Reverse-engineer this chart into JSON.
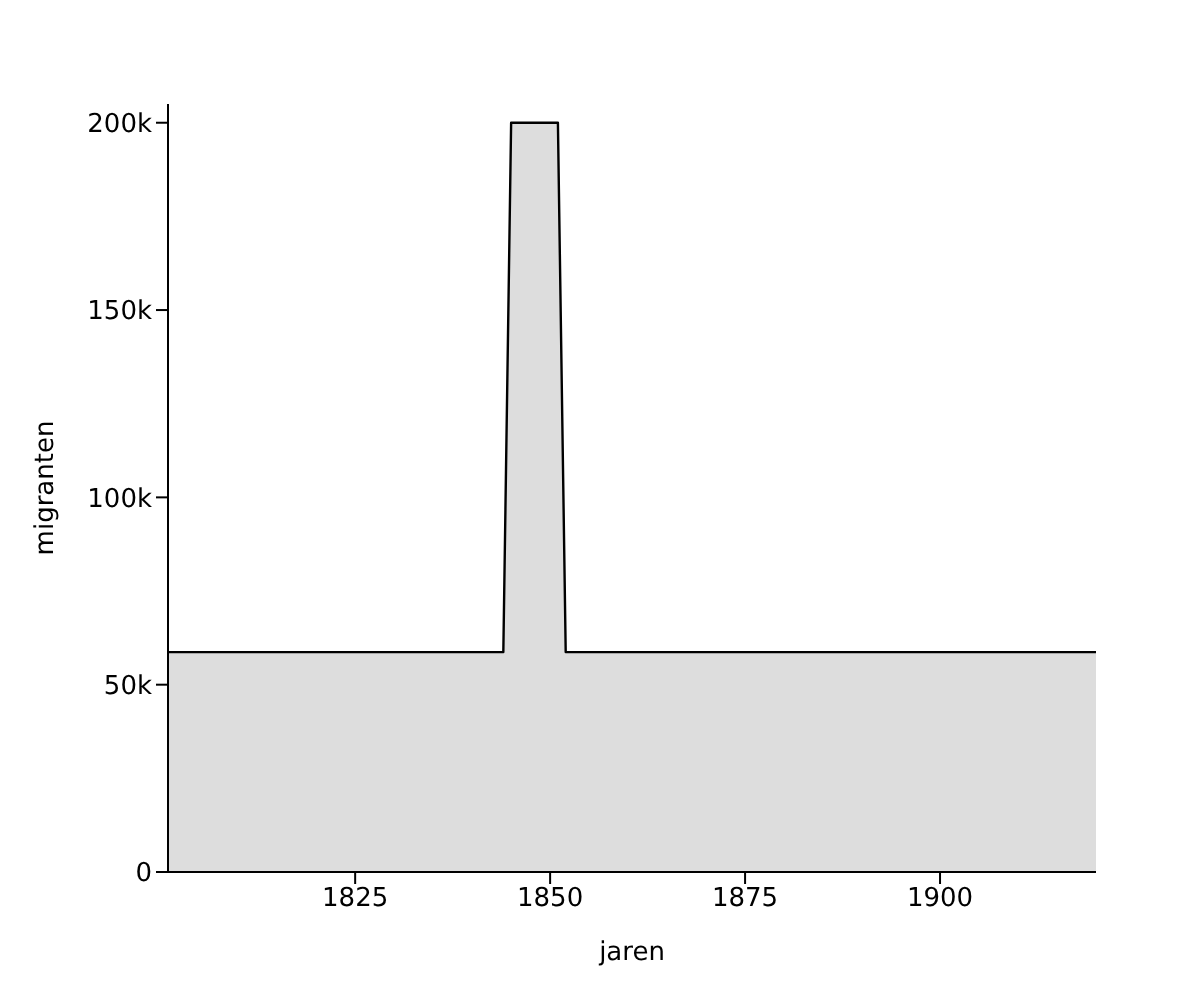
{
  "chart_data": {
    "type": "area",
    "xlabel": "jaren",
    "ylabel": "migranten",
    "x": [
      1801,
      1844,
      1845,
      1851,
      1852,
      1920
    ],
    "series": [
      {
        "color": "#dddddd",
        "values": [
          58700,
          58700,
          200000,
          200000,
          58700,
          58700
        ]
      }
    ],
    "xlim": [
      1801,
      1920
    ],
    "xticks": [
      1825,
      1850,
      1875,
      1900
    ],
    "ylim": [
      0,
      205000
    ],
    "yticks": [
      {
        "value": 0,
        "label": "0"
      },
      {
        "value": 50000,
        "label": "50k"
      },
      {
        "value": 100000,
        "label": "100k"
      },
      {
        "value": 150000,
        "label": "150k"
      },
      {
        "value": 200000,
        "label": "200k"
      }
    ],
    "grid": false,
    "legend": false
  }
}
